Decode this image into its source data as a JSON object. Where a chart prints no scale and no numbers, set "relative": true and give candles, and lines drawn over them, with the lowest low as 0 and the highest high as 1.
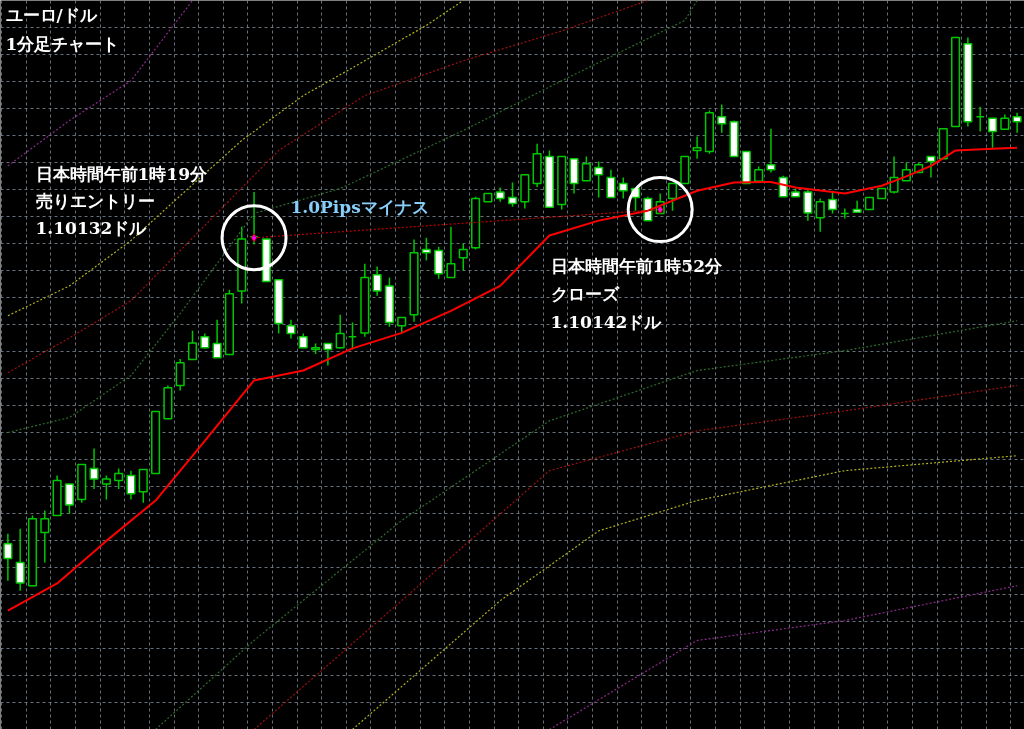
{
  "chart_data": {
    "type": "candlestick",
    "title": "ユーロ/ドル",
    "subtitle": "1分足チャート",
    "relative": true,
    "grid": true,
    "tick_labels": false,
    "annotations": [
      "日本時間午前1時19分",
      "売りエントリー",
      "1.10132ドル",
      "1.0Pipsマイナス",
      "日本時間午前1時52分",
      "クローズ",
      "1.10142ドル"
    ],
    "categories": [
      null,
      null,
      null,
      null,
      null,
      null,
      null,
      null,
      null,
      null,
      null,
      null,
      null,
      null,
      null,
      null,
      null,
      null,
      null,
      null,
      null,
      null,
      null,
      null,
      null,
      null,
      null,
      null,
      null,
      null,
      null,
      null,
      null,
      null,
      null,
      null,
      null,
      null,
      null,
      null,
      null,
      null,
      null,
      null,
      null,
      null,
      null,
      null,
      null,
      null,
      null,
      null,
      null,
      null,
      null,
      null,
      null,
      null,
      null,
      null,
      null,
      null,
      null,
      null,
      null,
      null,
      null,
      null,
      null,
      null,
      null,
      null,
      null,
      null,
      null,
      null,
      null,
      null,
      null,
      null,
      null,
      null,
      null
    ],
    "ohlc": [
      [
        0.085,
        0.103,
        0.018,
        0.058
      ],
      [
        0.051,
        0.112,
        0.0,
        0.014
      ],
      [
        0.009,
        0.136,
        0.009,
        0.13
      ],
      [
        0.105,
        0.145,
        0.051,
        0.13
      ],
      [
        0.136,
        0.208,
        0.136,
        0.199
      ],
      [
        0.193,
        0.193,
        0.139,
        0.155
      ],
      [
        0.165,
        0.228,
        0.159,
        0.228
      ],
      [
        0.221,
        0.257,
        0.184,
        0.202
      ],
      [
        0.193,
        0.208,
        0.165,
        0.202
      ],
      [
        0.199,
        0.221,
        0.184,
        0.212
      ],
      [
        0.208,
        0.217,
        0.165,
        0.175
      ],
      [
        0.179,
        0.219,
        0.159,
        0.219
      ],
      [
        0.212,
        0.324,
        0.212,
        0.324
      ],
      [
        0.311,
        0.371,
        0.311,
        0.367
      ],
      [
        0.371,
        0.419,
        0.362,
        0.412
      ],
      [
        0.418,
        0.47,
        0.418,
        0.448
      ],
      [
        0.459,
        0.465,
        0.438,
        0.439
      ],
      [
        0.447,
        0.49,
        0.421,
        0.421
      ],
      [
        0.427,
        0.544,
        0.427,
        0.537
      ],
      [
        0.542,
        0.658,
        0.519,
        0.636
      ],
      [
        0.64,
        0.721,
        0.626,
        0.64
      ],
      [
        0.636,
        0.636,
        0.559,
        0.559
      ],
      [
        0.562,
        0.562,
        0.465,
        0.483
      ],
      [
        0.479,
        0.49,
        0.456,
        0.465
      ],
      [
        0.459,
        0.465,
        0.439,
        0.439
      ],
      [
        0.436,
        0.447,
        0.428,
        0.439
      ],
      [
        0.447,
        0.447,
        0.407,
        0.436
      ],
      [
        0.439,
        0.499,
        0.438,
        0.465
      ],
      [
        0.459,
        0.485,
        0.436,
        0.459
      ],
      [
        0.466,
        0.591,
        0.459,
        0.566
      ],
      [
        0.571,
        0.586,
        0.533,
        0.542
      ],
      [
        0.551,
        0.566,
        0.477,
        0.485
      ],
      [
        0.479,
        0.494,
        0.466,
        0.494
      ],
      [
        0.499,
        0.635,
        0.486,
        0.611
      ],
      [
        0.617,
        0.638,
        0.597,
        0.611
      ],
      [
        0.615,
        0.622,
        0.564,
        0.573
      ],
      [
        0.566,
        0.658,
        0.566,
        0.591
      ],
      [
        0.602,
        0.627,
        0.579,
        0.617
      ],
      [
        0.62,
        0.712,
        0.617,
        0.709
      ],
      [
        0.703,
        0.718,
        0.703,
        0.718
      ],
      [
        0.721,
        0.729,
        0.703,
        0.709
      ],
      [
        0.711,
        0.738,
        0.694,
        0.7
      ],
      [
        0.703,
        0.752,
        0.691,
        0.752
      ],
      [
        0.736,
        0.808,
        0.73,
        0.79
      ],
      [
        0.785,
        0.796,
        0.693,
        0.693
      ],
      [
        0.698,
        0.785,
        0.689,
        0.785
      ],
      [
        0.781,
        0.781,
        0.718,
        0.736
      ],
      [
        0.741,
        0.785,
        0.741,
        0.772
      ],
      [
        0.765,
        0.776,
        0.711,
        0.752
      ],
      [
        0.747,
        0.761,
        0.711,
        0.711
      ],
      [
        0.736,
        0.747,
        0.709,
        0.723
      ],
      [
        0.727,
        0.727,
        0.687,
        0.711
      ],
      [
        0.709,
        0.712,
        0.669,
        0.669
      ],
      [
        0.682,
        0.718,
        0.682,
        0.703
      ],
      [
        0.709,
        0.736,
        0.687,
        0.736
      ],
      [
        0.736,
        0.785,
        0.736,
        0.785
      ],
      [
        0.796,
        0.821,
        0.781,
        0.801
      ],
      [
        0.794,
        0.868,
        0.79,
        0.864
      ],
      [
        0.857,
        0.879,
        0.828,
        0.844
      ],
      [
        0.848,
        0.85,
        0.785,
        0.785
      ],
      [
        0.794,
        0.794,
        0.736,
        0.736
      ],
      [
        0.74,
        0.767,
        0.74,
        0.761
      ],
      [
        0.77,
        0.835,
        0.756,
        0.761
      ],
      [
        0.747,
        0.75,
        0.712,
        0.712
      ],
      [
        0.721,
        0.727,
        0.712,
        0.712
      ],
      [
        0.721,
        0.727,
        0.669,
        0.683
      ],
      [
        0.674,
        0.709,
        0.649,
        0.703
      ],
      [
        0.707,
        0.723,
        0.682,
        0.689
      ],
      [
        0.682,
        0.691,
        0.673,
        0.682
      ],
      [
        0.689,
        0.705,
        0.684,
        0.684
      ],
      [
        0.689,
        0.711,
        0.689,
        0.711
      ],
      [
        0.709,
        0.727,
        0.709,
        0.727
      ],
      [
        0.721,
        0.785,
        0.718,
        0.747
      ],
      [
        0.741,
        0.774,
        0.741,
        0.761
      ],
      [
        0.756,
        0.774,
        0.756,
        0.77
      ],
      [
        0.785,
        0.785,
        0.747,
        0.776
      ],
      [
        0.781,
        0.835,
        0.781,
        0.835
      ],
      [
        0.839,
        1.0,
        0.839,
        1.0
      ],
      [
        0.989,
        1.0,
        0.839,
        0.848
      ],
      [
        0.857,
        0.875,
        0.83,
        0.857
      ],
      [
        0.854,
        0.854,
        0.801,
        0.83
      ],
      [
        0.834,
        0.861,
        0.834,
        0.854
      ],
      [
        0.857,
        0.864,
        0.828,
        0.848
      ]
    ],
    "series": [
      {
        "type": "line",
        "color": "#ff0000",
        "line_style": "solid",
        "values": [
          -0.036,
          null,
          null,
          null,
          0.013,
          null,
          null,
          null,
          0.09,
          null,
          null,
          null,
          0.163,
          null,
          null,
          null,
          0.271,
          null,
          null,
          null,
          0.38,
          null,
          null,
          null,
          0.398,
          null,
          null,
          null,
          0.438,
          null,
          null,
          null,
          0.466,
          null,
          null,
          null,
          0.506,
          null,
          null,
          null,
          0.551,
          null,
          null,
          null,
          0.642,
          null,
          null,
          null,
          0.669,
          null,
          null,
          null,
          0.687,
          null,
          null,
          null,
          0.723,
          null,
          null,
          0.738,
          null,
          null,
          0.739,
          null,
          0.729,
          null,
          null,
          null,
          0.718,
          null,
          null,
          0.732,
          null,
          0.749,
          null,
          0.768,
          null,
          0.796,
          null,
          null,
          0.799,
          null,
          0.801
        ]
      },
      {
        "type": "line",
        "color": "#8b2a8b",
        "line_style": "dotted",
        "values": [
          0.768,
          null,
          null,
          null,
          null,
          0.85,
          null,
          null,
          null,
          null,
          0.922,
          null,
          null,
          null,
          null,
          1.067,
          null,
          null,
          null,
          null,
          null,
          null,
          null,
          null,
          null,
          null,
          null,
          null,
          null,
          null,
          null,
          null,
          null,
          null,
          null,
          null,
          null,
          null,
          null,
          null,
          null,
          null,
          null,
          null,
          null,
          null,
          null,
          null,
          null,
          null,
          null,
          null,
          null,
          null,
          null,
          null,
          null,
          null,
          null,
          null,
          null,
          null,
          null,
          null,
          null,
          null,
          null,
          null,
          null,
          null,
          null,
          null,
          null,
          null,
          null,
          null,
          null,
          null,
          null,
          null,
          null,
          null,
          null
        ]
      },
      {
        "type": "line",
        "color": "#b0b020",
        "line_style": "dotted",
        "values": [
          0.497,
          null,
          null,
          null,
          null,
          0.551,
          null,
          null,
          null,
          null,
          0.633,
          null,
          null,
          null,
          0.714,
          null,
          null,
          null,
          null,
          0.814,
          null,
          null,
          null,
          null,
          0.895,
          null,
          null,
          null,
          null,
          0.958,
          null,
          null,
          null,
          null,
          1.022,
          null,
          null,
          1.067,
          null,
          null,
          null,
          null,
          null,
          null,
          null,
          null,
          null,
          null,
          null,
          null,
          null,
          null,
          null,
          null,
          null,
          null,
          null,
          null,
          null,
          null,
          null,
          null,
          null,
          null,
          null,
          null,
          null,
          null,
          null,
          null,
          null,
          null,
          null,
          null,
          null,
          null,
          null,
          null,
          null,
          null,
          null,
          null,
          null
        ]
      },
      {
        "type": "line",
        "color": "#a01010",
        "line_style": "dotted",
        "values": [
          0.394,
          null,
          null,
          null,
          null,
          0.457,
          null,
          null,
          null,
          null,
          0.524,
          null,
          null,
          null,
          0.615,
          null,
          null,
          null,
          null,
          null,
          null,
          null,
          0.796,
          null,
          null,
          null,
          null,
          null,
          null,
          0.895,
          null,
          null,
          null,
          null,
          null,
          null,
          null,
          0.958,
          null,
          null,
          null,
          null,
          null,
          null,
          null,
          1.012,
          null,
          null,
          null,
          null,
          null,
          null,
          1.067,
          null,
          null,
          null,
          null,
          null,
          null,
          null,
          null,
          null,
          null,
          null,
          null,
          null,
          null,
          null,
          null,
          null,
          null,
          null,
          null,
          null,
          null,
          null,
          null,
          null,
          null,
          null,
          null,
          null,
          null
        ]
      },
      {
        "type": "line",
        "color": "#2e6b2e",
        "line_style": "dotted",
        "values": [
          0.286,
          null,
          null,
          null,
          null,
          0.313,
          null,
          null,
          null,
          null,
          0.389,
          null,
          null,
          null,
          0.501,
          null,
          null,
          null,
          null,
          null,
          0.682,
          null,
          null,
          null,
          null,
          null,
          null,
          0.727,
          null,
          null,
          null,
          null,
          null,
          null,
          null,
          null,
          null,
          0.832,
          null,
          null,
          null,
          null,
          null,
          null,
          null,
          0.922,
          null,
          null,
          null,
          null,
          null,
          null,
          null,
          null,
          null,
          1.031,
          1.067,
          null,
          null,
          null,
          null,
          null,
          null,
          null,
          null,
          null,
          null,
          null,
          null,
          null,
          null,
          null,
          null,
          null,
          null,
          null,
          null,
          null,
          null,
          null,
          null,
          null,
          null
        ]
      },
      {
        "type": "line",
        "color": "#2e6b2e",
        "line_style": "dotted",
        "values": [
          null,
          null,
          null,
          null,
          null,
          null,
          null,
          null,
          null,
          null,
          null,
          null,
          -0.251,
          null,
          null,
          null,
          null,
          null,
          null,
          null,
          -0.09,
          null,
          null,
          null,
          null,
          null,
          null,
          null,
          null,
          null,
          null,
          null,
          0.127,
          null,
          null,
          null,
          null,
          null,
          null,
          null,
          null,
          null,
          null,
          null,
          0.307,
          null,
          null,
          null,
          null,
          null,
          null,
          null,
          null,
          null,
          null,
          null,
          0.398,
          null,
          null,
          null,
          null,
          null,
          null,
          null,
          null,
          null,
          null,
          null,
          0.434,
          null,
          null,
          null,
          null,
          null,
          null,
          null,
          null,
          null,
          null,
          null,
          null,
          null,
          0.488
        ]
      },
      {
        "type": "line",
        "color": "#a01010",
        "line_style": "dotted",
        "values": [
          null,
          null,
          null,
          null,
          null,
          null,
          null,
          null,
          null,
          null,
          null,
          null,
          null,
          null,
          null,
          null,
          null,
          null,
          null,
          null,
          -0.251,
          null,
          null,
          null,
          null,
          null,
          null,
          null,
          null,
          null,
          null,
          null,
          -0.018,
          null,
          null,
          null,
          null,
          null,
          null,
          null,
          null,
          null,
          null,
          null,
          0.217,
          null,
          null,
          null,
          null,
          null,
          null,
          null,
          null,
          null,
          null,
          null,
          0.289,
          null,
          null,
          null,
          null,
          null,
          null,
          null,
          null,
          null,
          null,
          null,
          0.325,
          null,
          null,
          null,
          null,
          null,
          null,
          null,
          null,
          null,
          null,
          null,
          null,
          null,
          0.371
        ]
      },
      {
        "type": "line",
        "color": "#b0b020",
        "line_style": "dotted",
        "values": [
          null,
          null,
          null,
          null,
          null,
          null,
          null,
          null,
          null,
          null,
          null,
          null,
          null,
          null,
          null,
          null,
          null,
          null,
          null,
          null,
          null,
          null,
          null,
          null,
          null,
          null,
          null,
          null,
          -0.251,
          null,
          null,
          null,
          null,
          null,
          null,
          null,
          null,
          null,
          null,
          null,
          -0.018,
          null,
          null,
          null,
          null,
          null,
          null,
          null,
          0.108,
          null,
          null,
          null,
          null,
          null,
          null,
          null,
          0.163,
          null,
          null,
          null,
          null,
          null,
          null,
          null,
          null,
          null,
          null,
          null,
          0.217,
          null,
          null,
          null,
          null,
          null,
          null,
          null,
          null,
          null,
          null,
          null,
          null,
          null,
          0.244
        ]
      },
      {
        "type": "line",
        "color": "#8b2a8b",
        "line_style": "dotted",
        "values": [
          null,
          null,
          null,
          null,
          null,
          null,
          null,
          null,
          null,
          null,
          null,
          null,
          null,
          null,
          null,
          null,
          null,
          null,
          null,
          null,
          null,
          null,
          null,
          null,
          null,
          null,
          null,
          null,
          null,
          null,
          null,
          null,
          null,
          null,
          null,
          null,
          null,
          null,
          null,
          null,
          null,
          null,
          null,
          null,
          -0.251,
          null,
          null,
          null,
          null,
          null,
          null,
          null,
          null,
          null,
          null,
          null,
          -0.09,
          null,
          null,
          null,
          null,
          null,
          null,
          null,
          null,
          null,
          null,
          null,
          -0.054,
          null,
          null,
          null,
          null,
          null,
          null,
          null,
          null,
          null,
          null,
          null,
          null,
          null,
          0.009
        ]
      },
      {
        "type": "line",
        "color": "#c00000",
        "line_style": "dotted",
        "marker": "diamond",
        "values": [
          null,
          null,
          null,
          null,
          null,
          null,
          null,
          null,
          null,
          null,
          null,
          null,
          null,
          null,
          null,
          null,
          null,
          null,
          null,
          null,
          0.638,
          null,
          null,
          null,
          null,
          null,
          null,
          null,
          null,
          null,
          null,
          null,
          null,
          null,
          null,
          null,
          null,
          null,
          null,
          null,
          null,
          null,
          null,
          null,
          null,
          null,
          null,
          null,
          null,
          null,
          null,
          null,
          null,
          0.689,
          null,
          null,
          null,
          null,
          null,
          null,
          null,
          null,
          null,
          null,
          null,
          null,
          null,
          null,
          null,
          null,
          null,
          null,
          null,
          null,
          null,
          null,
          null,
          null,
          null,
          null,
          null,
          null,
          null
        ]
      }
    ]
  }
}
